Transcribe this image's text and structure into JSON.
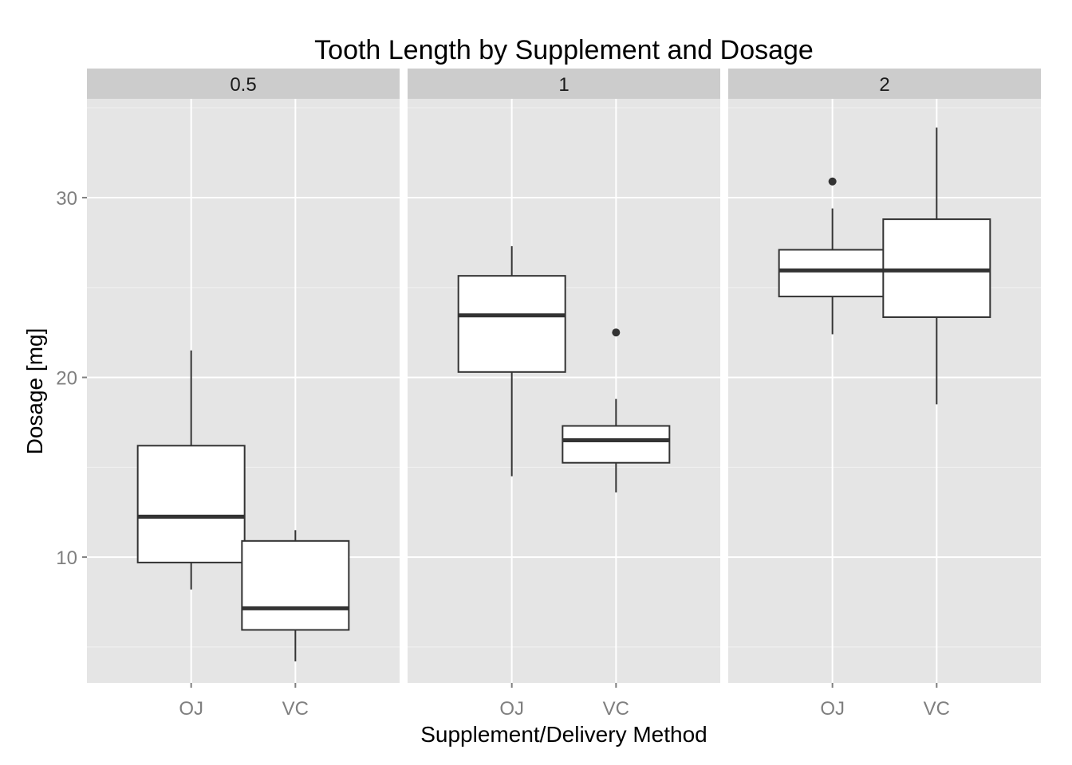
{
  "chart_data": {
    "type": "box",
    "title": "Tooth Length by Supplement and Dosage",
    "xlabel": "Supplement/Delivery Method",
    "ylabel": "Dosage [mg]",
    "ylim": [
      3,
      35.5
    ],
    "yticks": [
      10,
      20,
      30
    ],
    "categories": [
      "OJ",
      "VC"
    ],
    "grid": true,
    "colors": {
      "panel_bg": "#e5e5e5",
      "strip_bg": "#cccccc",
      "grid_major": "#ffffff",
      "grid_minor": "#f2f2f2",
      "box_fill": "#ffffff",
      "box_line": "#333333",
      "tick_label": "#7f7f7f"
    },
    "panels": [
      {
        "label": "0.5",
        "boxes": [
          {
            "category": "OJ",
            "whisker_low": 8.2,
            "q1": 9.7,
            "median": 12.25,
            "q3": 16.2,
            "whisker_high": 21.5,
            "outliers": []
          },
          {
            "category": "VC",
            "whisker_low": 4.2,
            "q1": 5.95,
            "median": 7.15,
            "q3": 10.9,
            "whisker_high": 11.5,
            "outliers": []
          }
        ]
      },
      {
        "label": "1",
        "boxes": [
          {
            "category": "OJ",
            "whisker_low": 14.5,
            "q1": 20.3,
            "median": 23.45,
            "q3": 25.65,
            "whisker_high": 27.3,
            "outliers": []
          },
          {
            "category": "VC",
            "whisker_low": 13.6,
            "q1": 15.25,
            "median": 16.5,
            "q3": 17.3,
            "whisker_high": 18.8,
            "outliers": [
              22.5
            ]
          }
        ]
      },
      {
        "label": "2",
        "boxes": [
          {
            "category": "OJ",
            "whisker_low": 22.4,
            "q1": 24.5,
            "median": 25.95,
            "q3": 27.1,
            "whisker_high": 29.4,
            "outliers": [
              30.9
            ]
          },
          {
            "category": "VC",
            "whisker_low": 18.5,
            "q1": 23.35,
            "median": 25.95,
            "q3": 28.8,
            "whisker_high": 33.9,
            "outliers": []
          }
        ]
      }
    ]
  }
}
